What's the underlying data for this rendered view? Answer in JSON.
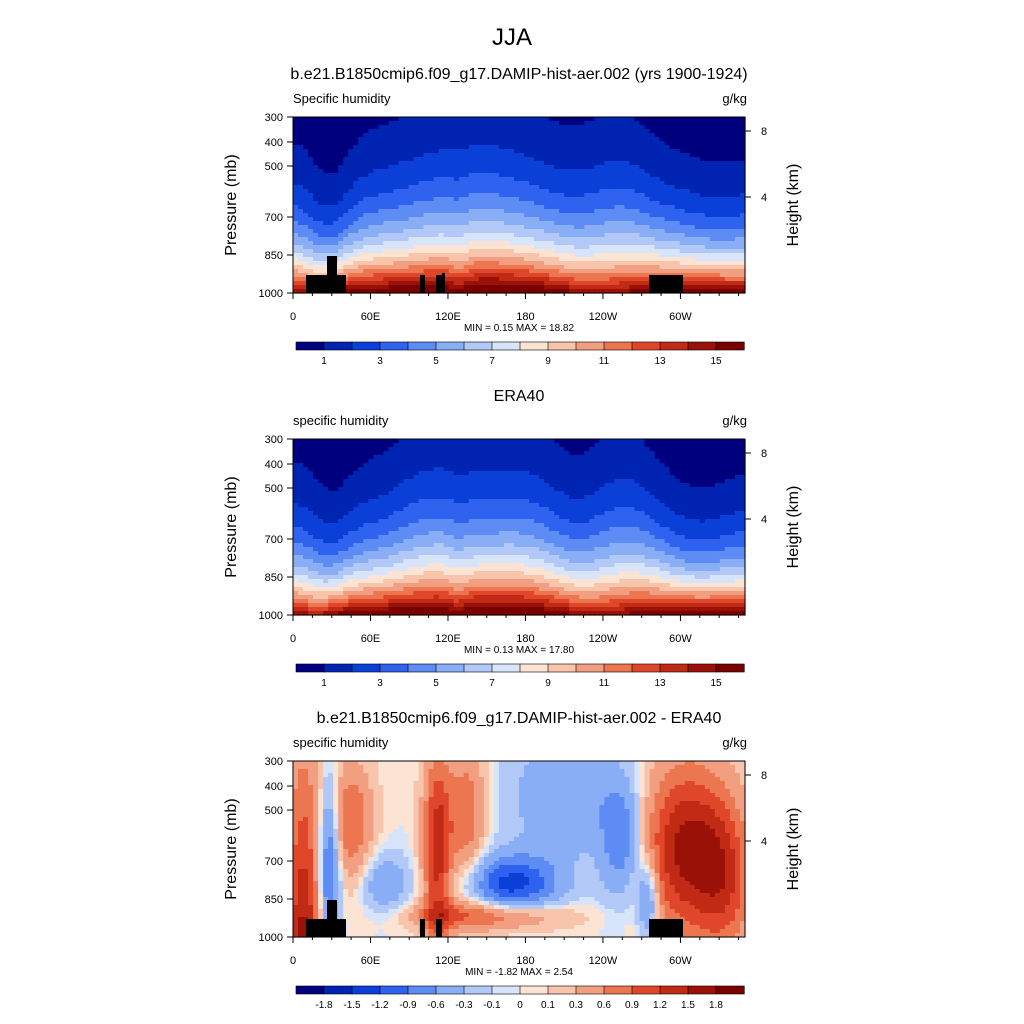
{
  "figure": {
    "title": "JJA"
  },
  "chart_data": [
    {
      "type": "heatmap",
      "title": "b.e21.B1850cmip6.f09_g17.DAMIP-hist-aer.002 (yrs 1900-1924)",
      "left_string": "Specific humidity",
      "right_string": "g/kg",
      "x_ticks": [
        "0",
        "60E",
        "120E",
        "180",
        "120W",
        "60W"
      ],
      "x_range": [
        0,
        350
      ],
      "y_ticks": [
        "300",
        "400",
        "500",
        "700",
        "850",
        "1000"
      ],
      "y_range": [
        1000,
        300
      ],
      "ylabel": "Pressure (mb)",
      "y2label": "Height (km)",
      "y2_ticks": [
        "8",
        "4"
      ],
      "stats": "MIN =   0.15  MAX =  18.82",
      "min": 0.15,
      "max": 18.82,
      "colorbar_labels": [
        "1",
        "3",
        "5",
        "7",
        "9",
        "11",
        "13",
        "15"
      ],
      "colorbar_levels": [
        1,
        2,
        3,
        4,
        5,
        6,
        7,
        8,
        9,
        10,
        11,
        12,
        13,
        14,
        15
      ],
      "colorbar_colors": [
        "#00007e",
        "#0024b2",
        "#0a40d8",
        "#2f62ee",
        "#5d8cf4",
        "#8aaef6",
        "#b2c9f8",
        "#d8e4fa",
        "#fce4d4",
        "#f8c4ac",
        "#f29e80",
        "#ec7650",
        "#e0472a",
        "#c12a14",
        "#9a1108",
        "#7a0000"
      ],
      "masked_lowest_levels": true
    },
    {
      "type": "heatmap",
      "title": "ERA40",
      "left_string": "specific humidity",
      "right_string": "g/kg",
      "x_ticks": [
        "0",
        "60E",
        "120E",
        "180",
        "120W",
        "60W"
      ],
      "x_range": [
        0,
        350
      ],
      "y_ticks": [
        "300",
        "400",
        "500",
        "700",
        "850",
        "1000"
      ],
      "y_range": [
        1000,
        300
      ],
      "ylabel": "Pressure (mb)",
      "y2label": "Height (km)",
      "y2_ticks": [
        "8",
        "4"
      ],
      "stats": "MIN =   0.13  MAX =  17.80",
      "min": 0.13,
      "max": 17.8,
      "colorbar_labels": [
        "1",
        "3",
        "5",
        "7",
        "9",
        "11",
        "13",
        "15"
      ],
      "colorbar_levels": [
        1,
        2,
        3,
        4,
        5,
        6,
        7,
        8,
        9,
        10,
        11,
        12,
        13,
        14,
        15
      ],
      "colorbar_colors": [
        "#00007e",
        "#0024b2",
        "#0a40d8",
        "#2f62ee",
        "#5d8cf4",
        "#8aaef6",
        "#b2c9f8",
        "#d8e4fa",
        "#fce4d4",
        "#f8c4ac",
        "#f29e80",
        "#ec7650",
        "#e0472a",
        "#c12a14",
        "#9a1108",
        "#7a0000"
      ],
      "masked_lowest_levels": false
    },
    {
      "type": "heatmap",
      "title": "b.e21.B1850cmip6.f09_g17.DAMIP-hist-aer.002 - ERA40",
      "left_string": "specific humidity",
      "right_string": "g/kg",
      "x_ticks": [
        "0",
        "60E",
        "120E",
        "180",
        "120W",
        "60W"
      ],
      "x_range": [
        0,
        350
      ],
      "y_ticks": [
        "300",
        "400",
        "500",
        "700",
        "850",
        "1000"
      ],
      "y_range": [
        1000,
        300
      ],
      "ylabel": "Pressure (mb)",
      "y2label": "Height (km)",
      "y2_ticks": [
        "8",
        "4"
      ],
      "stats": "MIN =  -1.82  MAX =   2.54",
      "min": -1.82,
      "max": 2.54,
      "colorbar_labels": [
        "-1.8",
        "-1.5",
        "-1.2",
        "-0.9",
        "-0.6",
        "-0.3",
        "-0.1",
        "0",
        "0.1",
        "0.3",
        "0.6",
        "0.9",
        "1.2",
        "1.5",
        "1.8"
      ],
      "colorbar_levels": [
        -1.8,
        -1.5,
        -1.2,
        -0.9,
        -0.6,
        -0.3,
        -0.1,
        0,
        0.1,
        0.3,
        0.6,
        0.9,
        1.2,
        1.5,
        1.8
      ],
      "colorbar_colors": [
        "#00007e",
        "#0024b2",
        "#0a40d8",
        "#2f62ee",
        "#5d8cf4",
        "#8aaef6",
        "#b2c9f8",
        "#d8e4fa",
        "#fce4d4",
        "#f8c4ac",
        "#f29e80",
        "#ec7650",
        "#e0472a",
        "#c12a14",
        "#9a1108",
        "#7a0000"
      ],
      "masked_lowest_levels": true
    }
  ]
}
